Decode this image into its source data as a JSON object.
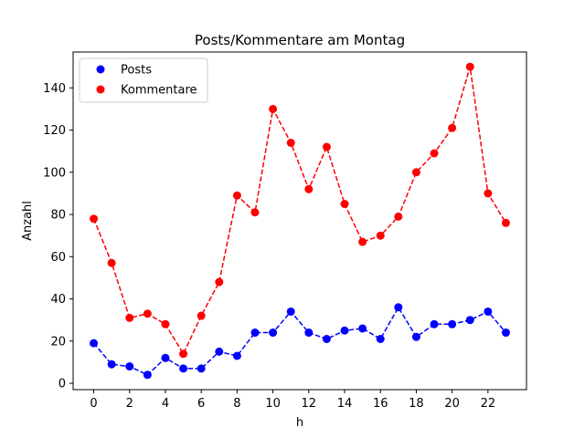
{
  "chart_data": {
    "type": "line",
    "title": "Posts/Kommentare am Montag",
    "xlabel": "h",
    "ylabel": "Anzahl",
    "x": [
      0,
      1,
      2,
      3,
      4,
      5,
      6,
      7,
      8,
      9,
      10,
      11,
      12,
      13,
      14,
      15,
      16,
      17,
      18,
      19,
      20,
      21,
      22,
      23
    ],
    "xlim": [
      -1.15,
      24.15
    ],
    "ylim": [
      -3,
      157
    ],
    "xticks": [
      0,
      2,
      4,
      6,
      8,
      10,
      12,
      14,
      16,
      18,
      20,
      22
    ],
    "yticks": [
      0,
      20,
      40,
      60,
      80,
      100,
      120,
      140
    ],
    "grid": false,
    "legend_position": "upper left",
    "series": [
      {
        "name": "Posts",
        "color": "#0000ff",
        "linestyle": "dashed",
        "marker": "circle",
        "values": [
          19,
          9,
          8,
          4,
          12,
          7,
          7,
          15,
          13,
          24,
          24,
          34,
          24,
          21,
          25,
          26,
          21,
          36,
          22,
          28,
          28,
          30,
          34,
          24
        ]
      },
      {
        "name": "Kommentare",
        "color": "#ff0000",
        "linestyle": "dashed",
        "marker": "circle",
        "values": [
          78,
          57,
          31,
          33,
          28,
          14,
          32,
          48,
          89,
          81,
          130,
          114,
          92,
          112,
          85,
          67,
          70,
          79,
          100,
          109,
          121,
          150,
          90,
          76
        ]
      }
    ]
  }
}
